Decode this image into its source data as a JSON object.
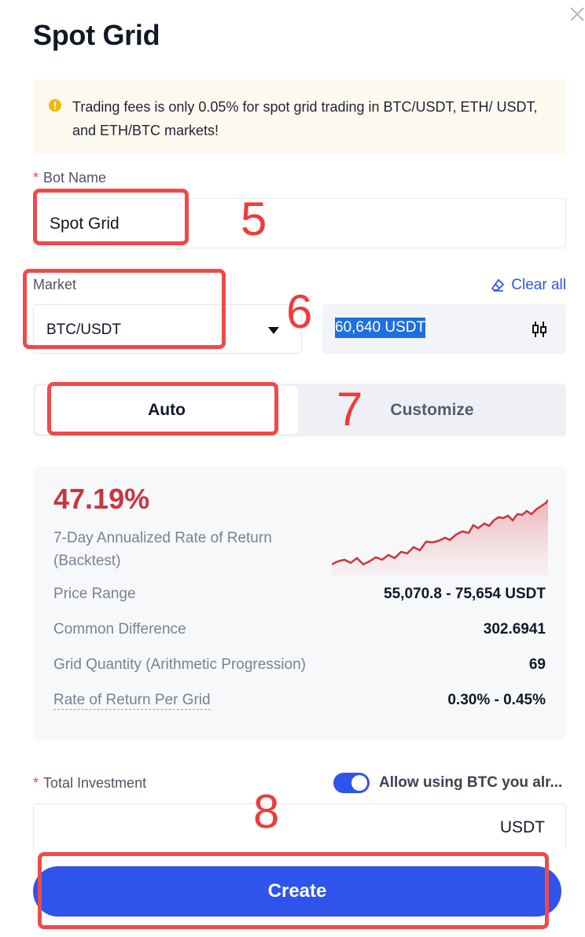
{
  "header": {
    "title": "Spot Grid",
    "close_icon": "close-icon"
  },
  "notice": {
    "icon": "info-circle-icon",
    "text": "Trading fees is only 0.05% for spot grid trading in BTC/USDT, ETH/ USDT, and ETH/BTC markets!"
  },
  "bot_name": {
    "required_mark": "*",
    "label": "Bot Name",
    "value": "Spot Grid"
  },
  "market": {
    "label": "Market",
    "value": "BTC/USDT",
    "clear_all": "Clear all",
    "price": "60,640 USDT",
    "price_icon": "candlestick-icon"
  },
  "mode": {
    "auto": "Auto",
    "customize": "Customize",
    "selected": "Auto"
  },
  "stats": {
    "apr": "47.19%",
    "apr_label": "7-Day Annualized Rate of Return (Backtest)",
    "rows": [
      {
        "label": "Price Range",
        "value": "55,070.8 - 75,654 USDT"
      },
      {
        "label": "Common Difference",
        "value": "302.6941"
      },
      {
        "label": "Grid Quantity (Arithmetic Progression)",
        "value": "69"
      },
      {
        "label": "Rate of Return Per Grid",
        "value": "0.30% - 0.45%"
      }
    ],
    "sparkline_color": "#c9363f"
  },
  "investment": {
    "required_mark": "*",
    "label": "Total Investment",
    "allow_text": "Allow using BTC you alr...",
    "allow_enabled": true,
    "unit": "USDT"
  },
  "create_button": "Create",
  "annotations": [
    "5",
    "6",
    "7",
    "8"
  ],
  "colors": {
    "accent": "#2f54eb",
    "annotation": "#ef4a4a",
    "apr": "#c9363f"
  }
}
